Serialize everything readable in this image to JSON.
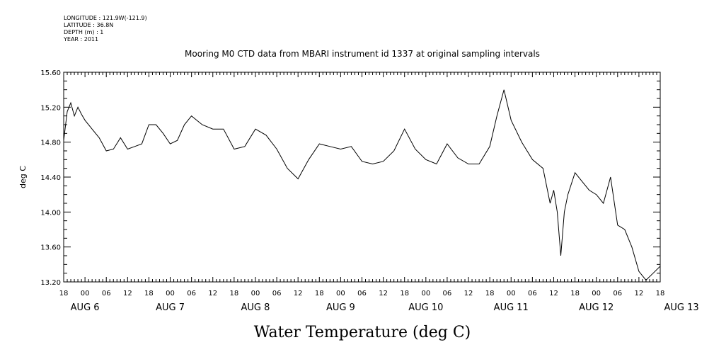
{
  "meta": {
    "longitude": "LONGITUDE : 121.9W(-121.9)",
    "latitude": "LATITUDE : 36.8N",
    "depth": "DEPTH (m) : 1",
    "year": "YEAR : 2011"
  },
  "chart_data": {
    "type": "line",
    "title": "Mooring M0 CTD data from MBARI instrument id 1337 at original sampling intervals",
    "xlabel": "Water Temperature (deg C)",
    "ylabel": "deg C",
    "ylim": [
      13.2,
      15.6
    ],
    "yticks": [
      "13.20",
      "13.60",
      "14.00",
      "14.40",
      "14.80",
      "15.20",
      "15.60"
    ],
    "xlim": [
      "2011-08-06T18:00",
      "2011-08-13T18:00"
    ],
    "hour_tick_labels": [
      "18",
      "00",
      "06",
      "12",
      "18",
      "00",
      "06",
      "12",
      "18",
      "00",
      "06",
      "12",
      "18",
      "00",
      "06",
      "12",
      "18",
      "00",
      "06",
      "12",
      "18",
      "00",
      "06",
      "12",
      "18",
      "00",
      "06",
      "12",
      "18"
    ],
    "day_labels": [
      "AUG  6",
      "AUG  7",
      "AUG  8",
      "AUG  9",
      "AUG 10",
      "AUG 11",
      "AUG 12",
      "AUG 13"
    ],
    "grid": false,
    "legend": "none",
    "line_color": "#000000",
    "series": [
      {
        "x": [
          "2011-08-06T18:00",
          "2011-08-06T19:00",
          "2011-08-06T20:00",
          "2011-08-06T21:00",
          "2011-08-06T22:00",
          "2011-08-06T23:00",
          "2011-08-07T00:00",
          "2011-08-07T02:00",
          "2011-08-07T04:00",
          "2011-08-07T06:00",
          "2011-08-07T08:00",
          "2011-08-07T10:00",
          "2011-08-07T12:00",
          "2011-08-07T14:00",
          "2011-08-07T16:00",
          "2011-08-07T18:00",
          "2011-08-07T20:00",
          "2011-08-07T22:00",
          "2011-08-08T00:00",
          "2011-08-08T02:00",
          "2011-08-08T04:00",
          "2011-08-08T06:00",
          "2011-08-08T09:00",
          "2011-08-08T12:00",
          "2011-08-08T15:00",
          "2011-08-08T18:00",
          "2011-08-08T21:00",
          "2011-08-09T00:00",
          "2011-08-09T03:00",
          "2011-08-09T06:00",
          "2011-08-09T09:00",
          "2011-08-09T12:00",
          "2011-08-09T15:00",
          "2011-08-09T18:00",
          "2011-08-09T21:00",
          "2011-08-10T00:00",
          "2011-08-10T03:00",
          "2011-08-10T06:00",
          "2011-08-10T09:00",
          "2011-08-10T12:00",
          "2011-08-10T15:00",
          "2011-08-10T18:00",
          "2011-08-10T21:00",
          "2011-08-11T00:00",
          "2011-08-11T03:00",
          "2011-08-11T06:00",
          "2011-08-11T09:00",
          "2011-08-11T12:00",
          "2011-08-11T15:00",
          "2011-08-11T18:00",
          "2011-08-11T20:00",
          "2011-08-11T22:00",
          "2011-08-12T00:00",
          "2011-08-12T03:00",
          "2011-08-12T06:00",
          "2011-08-12T09:00",
          "2011-08-12T11:00",
          "2011-08-12T12:00",
          "2011-08-12T13:00",
          "2011-08-12T14:00",
          "2011-08-12T15:00",
          "2011-08-12T16:00",
          "2011-08-12T18:00",
          "2011-08-12T20:00",
          "2011-08-12T22:00",
          "2011-08-13T00:00",
          "2011-08-13T02:00",
          "2011-08-13T04:00",
          "2011-08-13T06:00",
          "2011-08-13T08:00",
          "2011-08-13T10:00",
          "2011-08-13T12:00",
          "2011-08-13T14:00",
          "2011-08-13T16:00",
          "2011-08-13T18:00"
        ],
        "y": [
          14.82,
          15.15,
          15.25,
          15.1,
          15.2,
          15.12,
          15.05,
          14.95,
          14.85,
          14.7,
          14.72,
          14.85,
          14.72,
          14.75,
          14.78,
          15.0,
          15.0,
          14.9,
          14.78,
          14.82,
          15.0,
          15.1,
          15.0,
          14.95,
          14.95,
          14.72,
          14.75,
          14.95,
          14.88,
          14.72,
          14.5,
          14.38,
          14.6,
          14.78,
          14.75,
          14.72,
          14.75,
          14.58,
          14.55,
          14.58,
          14.7,
          14.95,
          14.72,
          14.6,
          14.55,
          14.78,
          14.62,
          14.55,
          14.55,
          14.75,
          15.1,
          15.4,
          15.05,
          14.8,
          14.6,
          14.5,
          14.1,
          14.25,
          14.0,
          13.5,
          14.0,
          14.2,
          14.45,
          14.35,
          14.25,
          14.2,
          14.1,
          14.4,
          13.85,
          13.8,
          13.6,
          13.32,
          13.22,
          13.3,
          13.38
        ]
      }
    ]
  }
}
